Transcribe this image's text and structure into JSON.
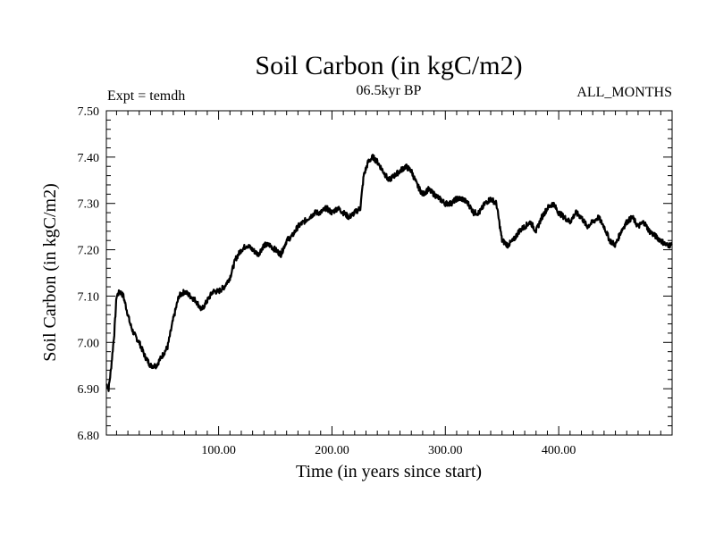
{
  "chart_data": {
    "type": "line",
    "title": "Soil Carbon (in kgC/m2)",
    "subtitle_left": "Expt = temdh",
    "subtitle_center": "06.5kyr BP",
    "subtitle_right": "ALL_MONTHS",
    "xlabel": "Time (in years since start)",
    "ylabel": "Soil Carbon (in kgC/m2)",
    "xlim": [
      1,
      500
    ],
    "ylim": [
      6.8,
      7.5
    ],
    "x_ticks": [
      100,
      200,
      300,
      400
    ],
    "x_tick_labels": [
      "100.00",
      "200.00",
      "300.00",
      "400.00"
    ],
    "y_ticks": [
      6.8,
      6.9,
      7.0,
      7.1,
      7.2,
      7.3,
      7.4,
      7.5
    ],
    "y_tick_labels": [
      "6.80",
      "6.90",
      "7.00",
      "7.10",
      "7.20",
      "7.30",
      "7.40",
      "7.50"
    ],
    "line_color": "#000000",
    "series": [
      {
        "name": "Soil Carbon",
        "x": [
          1,
          3,
          5,
          8,
          10,
          13,
          16,
          19,
          22,
          25,
          30,
          35,
          40,
          45,
          50,
          55,
          60,
          65,
          70,
          75,
          80,
          85,
          90,
          95,
          100,
          105,
          110,
          115,
          120,
          125,
          130,
          135,
          140,
          145,
          150,
          155,
          160,
          165,
          170,
          175,
          180,
          185,
          190,
          195,
          200,
          205,
          210,
          215,
          220,
          225,
          228,
          232,
          236,
          240,
          245,
          250,
          255,
          260,
          265,
          270,
          275,
          280,
          285,
          290,
          295,
          300,
          305,
          310,
          315,
          320,
          325,
          330,
          335,
          340,
          345,
          350,
          355,
          360,
          365,
          370,
          375,
          380,
          385,
          390,
          395,
          400,
          405,
          410,
          415,
          420,
          425,
          430,
          435,
          440,
          445,
          450,
          455,
          460,
          465,
          470,
          475,
          480,
          485,
          490,
          495,
          500
        ],
        "y": [
          6.91,
          6.9,
          6.94,
          7.02,
          7.1,
          7.11,
          7.1,
          7.07,
          7.04,
          7.02,
          7.0,
          6.97,
          6.95,
          6.95,
          6.97,
          6.99,
          7.05,
          7.1,
          7.11,
          7.1,
          7.09,
          7.07,
          7.09,
          7.11,
          7.11,
          7.12,
          7.14,
          7.18,
          7.2,
          7.21,
          7.2,
          7.19,
          7.21,
          7.21,
          7.2,
          7.19,
          7.22,
          7.23,
          7.25,
          7.26,
          7.27,
          7.28,
          7.28,
          7.29,
          7.28,
          7.29,
          7.28,
          7.27,
          7.28,
          7.29,
          7.36,
          7.39,
          7.4,
          7.39,
          7.37,
          7.35,
          7.36,
          7.37,
          7.38,
          7.37,
          7.34,
          7.32,
          7.33,
          7.32,
          7.31,
          7.3,
          7.3,
          7.31,
          7.31,
          7.3,
          7.28,
          7.28,
          7.3,
          7.31,
          7.3,
          7.22,
          7.21,
          7.22,
          7.24,
          7.25,
          7.26,
          7.24,
          7.27,
          7.29,
          7.3,
          7.28,
          7.27,
          7.26,
          7.28,
          7.27,
          7.25,
          7.26,
          7.27,
          7.25,
          7.22,
          7.21,
          7.24,
          7.26,
          7.27,
          7.25,
          7.26,
          7.24,
          7.23,
          7.22,
          7.21,
          7.21
        ]
      }
    ]
  }
}
